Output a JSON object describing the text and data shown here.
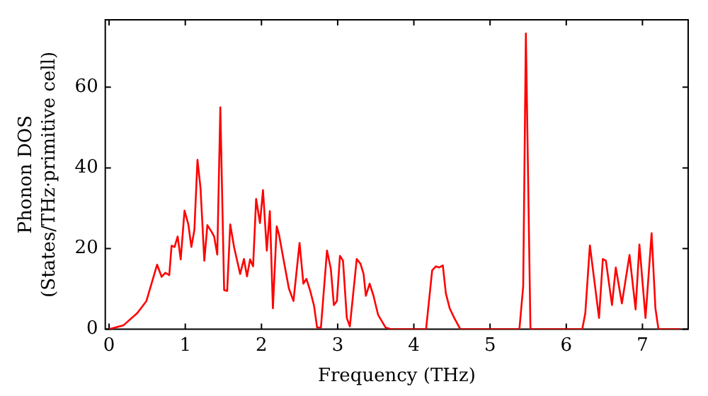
{
  "chart_data": {
    "type": "line",
    "xlabel": "Frequency (THz)",
    "ylabel": "Phonon DOS\n(States/THz·primitive cell)",
    "xlim": [
      -0.05,
      7.6
    ],
    "xticks": [
      0,
      1,
      2,
      3,
      4,
      5,
      6,
      7
    ],
    "ylim": [
      0,
      76.7
    ],
    "yticks": [
      0,
      20,
      40,
      60
    ],
    "marker": "none",
    "line_style": "solid",
    "series": [
      {
        "color": "#ff0000",
        "x": [
          0,
          0.19,
          0.37,
          0.49,
          0.63,
          0.69,
          0.74,
          0.79,
          0.82,
          0.86,
          0.9,
          0.94,
          0.99,
          1.04,
          1.08,
          1.12,
          1.16,
          1.2,
          1.25,
          1.29,
          1.35,
          1.38,
          1.42,
          1.46,
          1.51,
          1.55,
          1.59,
          1.64,
          1.72,
          1.77,
          1.81,
          1.85,
          1.89,
          1.93,
          1.98,
          2.02,
          2.07,
          2.11,
          2.15,
          2.2,
          2.23,
          2.3,
          2.36,
          2.42,
          2.5,
          2.55,
          2.59,
          2.64,
          2.69,
          2.73,
          2.78,
          2.86,
          2.91,
          2.95,
          2.99,
          3.03,
          3.07,
          3.12,
          3.16,
          3.25,
          3.3,
          3.34,
          3.37,
          3.42,
          3.47,
          3.53,
          3.63,
          3.7,
          4.16,
          4.24,
          4.29,
          4.33,
          4.38,
          4.42,
          4.47,
          4.53,
          4.61,
          5.385,
          5.435,
          5.47,
          5.53,
          6.21,
          6.25,
          6.31,
          6.43,
          6.48,
          6.52,
          6.6,
          6.65,
          6.73,
          6.83,
          6.91,
          6.96,
          7.04,
          7.12,
          7.17,
          7.21,
          7.5
        ],
        "values": [
          0,
          1,
          4,
          7,
          16,
          13,
          14,
          13.4,
          20.7,
          20.4,
          23,
          17.3,
          29.4,
          26,
          20.4,
          24.7,
          42,
          35,
          17,
          25.8,
          24,
          22.9,
          18.5,
          55,
          9.7,
          9.5,
          26,
          20.4,
          13.7,
          17.4,
          13.1,
          17.3,
          15.6,
          32.3,
          26.3,
          34.5,
          19.5,
          29.3,
          5.2,
          25.5,
          23.5,
          16.2,
          10.1,
          7,
          21.4,
          11.3,
          12.5,
          9.5,
          5.8,
          0.4,
          0.4,
          19.5,
          15,
          6,
          7,
          18.2,
          17,
          2.8,
          0.7,
          17.4,
          16.2,
          13.7,
          8.3,
          11.3,
          8.3,
          3.6,
          0.4,
          0,
          0,
          14.6,
          15.6,
          15.3,
          15.8,
          8.9,
          5.2,
          2.8,
          0,
          0,
          10.7,
          73.3,
          0,
          0,
          4,
          20.8,
          2.8,
          17.4,
          17,
          6,
          15.3,
          6.4,
          18.4,
          4.9,
          21,
          2.8,
          23.8,
          5.2,
          0,
          0
        ]
      }
    ]
  }
}
